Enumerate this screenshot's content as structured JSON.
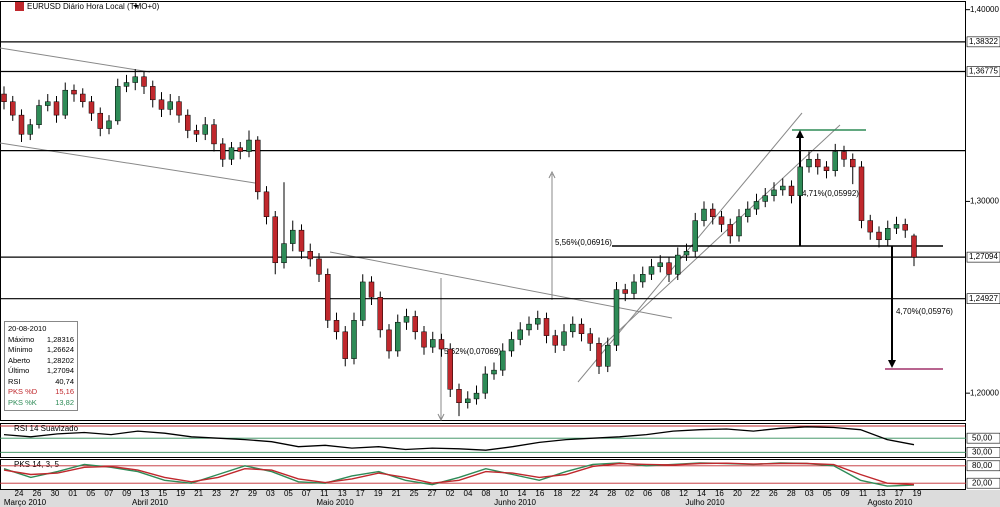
{
  "header": {
    "title": "EURUSD Diário Hora Local (TMO+0)"
  },
  "chart_data": {
    "type": "candlestick",
    "ylim": [
      1.186,
      1.404
    ],
    "yticks": [
      {
        "value": 1.4,
        "label": "1,40000"
      },
      {
        "value": 1.3,
        "label": "1,30000"
      },
      {
        "value": 1.2,
        "label": "1,20000"
      }
    ],
    "levels": [
      {
        "value": 1.38322,
        "label": "1,38322"
      },
      {
        "value": 1.36775,
        "label": "1,36775"
      },
      1.3265,
      {
        "value": 1.27094,
        "label": "1,27094"
      },
      {
        "value": 1.24927,
        "label": "1,24927"
      }
    ],
    "bull_color": "#2e8b57",
    "bear_color": "#c0282d",
    "candles": [
      [
        1.356,
        1.36,
        1.348,
        1.352
      ],
      [
        1.352,
        1.355,
        1.342,
        1.345
      ],
      [
        1.345,
        1.348,
        1.331,
        1.335
      ],
      [
        1.335,
        1.343,
        1.332,
        1.34
      ],
      [
        1.34,
        1.353,
        1.338,
        1.35
      ],
      [
        1.35,
        1.356,
        1.347,
        1.352
      ],
      [
        1.352,
        1.355,
        1.341,
        1.345
      ],
      [
        1.345,
        1.362,
        1.343,
        1.358
      ],
      [
        1.358,
        1.361,
        1.352,
        1.356
      ],
      [
        1.356,
        1.359,
        1.349,
        1.352
      ],
      [
        1.352,
        1.355,
        1.342,
        1.346
      ],
      [
        1.346,
        1.349,
        1.334,
        1.338
      ],
      [
        1.338,
        1.345,
        1.335,
        1.342
      ],
      [
        1.342,
        1.364,
        1.34,
        1.36
      ],
      [
        1.36,
        1.366,
        1.357,
        1.362
      ],
      [
        1.362,
        1.369,
        1.358,
        1.365
      ],
      [
        1.365,
        1.368,
        1.356,
        1.36
      ],
      [
        1.36,
        1.363,
        1.349,
        1.353
      ],
      [
        1.353,
        1.357,
        1.344,
        1.348
      ],
      [
        1.348,
        1.356,
        1.345,
        1.352
      ],
      [
        1.352,
        1.355,
        1.341,
        1.345
      ],
      [
        1.345,
        1.348,
        1.333,
        1.337
      ],
      [
        1.337,
        1.34,
        1.331,
        1.335
      ],
      [
        1.335,
        1.344,
        1.332,
        1.34
      ],
      [
        1.34,
        1.343,
        1.326,
        1.33
      ],
      [
        1.33,
        1.333,
        1.318,
        1.322
      ],
      [
        1.322,
        1.331,
        1.319,
        1.328
      ],
      [
        1.328,
        1.331,
        1.322,
        1.326
      ],
      [
        1.326,
        1.337,
        1.323,
        1.332
      ],
      [
        1.332,
        1.334,
        1.301,
        1.305
      ],
      [
        1.305,
        1.308,
        1.288,
        1.292
      ],
      [
        1.292,
        1.295,
        1.262,
        1.268
      ],
      [
        1.268,
        1.31,
        1.265,
        1.278
      ],
      [
        1.278,
        1.29,
        1.274,
        1.285
      ],
      [
        1.285,
        1.288,
        1.27,
        1.274
      ],
      [
        1.274,
        1.278,
        1.266,
        1.27
      ],
      [
        1.27,
        1.273,
        1.258,
        1.262
      ],
      [
        1.262,
        1.265,
        1.234,
        1.238
      ],
      [
        1.238,
        1.242,
        1.228,
        1.232
      ],
      [
        1.232,
        1.235,
        1.214,
        1.218
      ],
      [
        1.218,
        1.242,
        1.215,
        1.238
      ],
      [
        1.238,
        1.262,
        1.235,
        1.258
      ],
      [
        1.258,
        1.261,
        1.246,
        1.25
      ],
      [
        1.25,
        1.253,
        1.229,
        1.233
      ],
      [
        1.233,
        1.236,
        1.218,
        1.222
      ],
      [
        1.222,
        1.241,
        1.219,
        1.237
      ],
      [
        1.237,
        1.244,
        1.233,
        1.24
      ],
      [
        1.24,
        1.243,
        1.228,
        1.232
      ],
      [
        1.232,
        1.235,
        1.22,
        1.224
      ],
      [
        1.224,
        1.232,
        1.221,
        1.228
      ],
      [
        1.228,
        1.231,
        1.219,
        1.223
      ],
      [
        1.223,
        1.226,
        1.198,
        1.202
      ],
      [
        1.202,
        1.205,
        1.188,
        1.195
      ],
      [
        1.195,
        1.201,
        1.192,
        1.197
      ],
      [
        1.197,
        1.204,
        1.194,
        1.2
      ],
      [
        1.2,
        1.214,
        1.197,
        1.21
      ],
      [
        1.21,
        1.216,
        1.207,
        1.212
      ],
      [
        1.212,
        1.226,
        1.209,
        1.222
      ],
      [
        1.222,
        1.232,
        1.219,
        1.228
      ],
      [
        1.228,
        1.237,
        1.225,
        1.233
      ],
      [
        1.233,
        1.24,
        1.23,
        1.236
      ],
      [
        1.236,
        1.243,
        1.233,
        1.239
      ],
      [
        1.239,
        1.242,
        1.226,
        1.23
      ],
      [
        1.23,
        1.233,
        1.221,
        1.225
      ],
      [
        1.225,
        1.236,
        1.222,
        1.232
      ],
      [
        1.232,
        1.24,
        1.229,
        1.236
      ],
      [
        1.236,
        1.239,
        1.227,
        1.231
      ],
      [
        1.231,
        1.234,
        1.222,
        1.226
      ],
      [
        1.226,
        1.229,
        1.21,
        1.214
      ],
      [
        1.214,
        1.229,
        1.211,
        1.225
      ],
      [
        1.225,
        1.258,
        1.222,
        1.254
      ],
      [
        1.254,
        1.257,
        1.248,
        1.252
      ],
      [
        1.252,
        1.262,
        1.249,
        1.258
      ],
      [
        1.258,
        1.266,
        1.255,
        1.262
      ],
      [
        1.262,
        1.27,
        1.259,
        1.266
      ],
      [
        1.266,
        1.272,
        1.263,
        1.268
      ],
      [
        1.268,
        1.271,
        1.258,
        1.262
      ],
      [
        1.262,
        1.276,
        1.259,
        1.272
      ],
      [
        1.272,
        1.278,
        1.269,
        1.274
      ],
      [
        1.274,
        1.294,
        1.271,
        1.29
      ],
      [
        1.29,
        1.3,
        1.287,
        1.296
      ],
      [
        1.296,
        1.299,
        1.288,
        1.292
      ],
      [
        1.292,
        1.295,
        1.284,
        1.288
      ],
      [
        1.288,
        1.291,
        1.278,
        1.282
      ],
      [
        1.282,
        1.296,
        1.279,
        1.292
      ],
      [
        1.292,
        1.3,
        1.289,
        1.296
      ],
      [
        1.296,
        1.304,
        1.293,
        1.3
      ],
      [
        1.3,
        1.307,
        1.297,
        1.303
      ],
      [
        1.303,
        1.31,
        1.3,
        1.306
      ],
      [
        1.306,
        1.312,
        1.303,
        1.308
      ],
      [
        1.308,
        1.311,
        1.299,
        1.303
      ],
      [
        1.303,
        1.322,
        1.3,
        1.318
      ],
      [
        1.318,
        1.326,
        1.315,
        1.322
      ],
      [
        1.322,
        1.325,
        1.314,
        1.318
      ],
      [
        1.318,
        1.321,
        1.312,
        1.316
      ],
      [
        1.316,
        1.33,
        1.313,
        1.326
      ],
      [
        1.326,
        1.329,
        1.318,
        1.322
      ],
      [
        1.322,
        1.325,
        1.309,
        1.318
      ],
      [
        1.318,
        1.321,
        1.286,
        1.29
      ],
      [
        1.29,
        1.293,
        1.28,
        1.284
      ],
      [
        1.284,
        1.287,
        1.276,
        1.28
      ],
      [
        1.28,
        1.29,
        1.277,
        1.286
      ],
      [
        1.286,
        1.292,
        1.283,
        1.288
      ],
      [
        1.288,
        1.291,
        1.281,
        1.285
      ],
      [
        1.28202,
        1.28316,
        1.26624,
        1.27094
      ]
    ],
    "annotations": [
      "5,56%(0,06916)",
      "5,62%(0,07069)",
      "4,71%(0,05992)",
      "4,70%(0,05976)"
    ],
    "days": [
      "24",
      "26",
      "30",
      "01",
      "05",
      "07",
      "09",
      "13",
      "15",
      "19",
      "21",
      "23",
      "27",
      "29",
      "03",
      "05",
      "07",
      "11",
      "13",
      "17",
      "19",
      "21",
      "25",
      "27",
      "02",
      "04",
      "08",
      "10",
      "14",
      "16",
      "18",
      "22",
      "24",
      "28",
      "02",
      "06",
      "08",
      "12",
      "14",
      "16",
      "20",
      "22",
      "26",
      "28",
      "03",
      "05",
      "09",
      "11",
      "13",
      "17",
      "19"
    ],
    "months": [
      "Março 2010",
      "Abril 2010",
      "Maio 2010",
      "Junho 2010",
      "Julho 2010",
      "Agosto 2010"
    ],
    "rsi": {
      "title": "RSI 14 Suavizado",
      "color": "#000000",
      "ylim": [
        22,
        70
      ],
      "yticks": [
        {
          "value": 50,
          "label": "50,00"
        },
        {
          "value": 30,
          "label": "30,00"
        }
      ],
      "values": [
        55,
        52,
        56,
        58,
        55,
        60,
        57,
        52,
        50,
        48,
        45,
        38,
        40,
        36,
        38,
        34,
        36,
        35,
        33,
        38,
        44,
        48,
        50,
        52,
        55,
        60,
        62,
        63,
        60,
        64,
        66,
        65,
        62,
        48,
        40.74
      ]
    },
    "stoch": {
      "title": "PKS 14, 3, 5",
      "ylim": [
        0,
        100
      ],
      "yticks": [
        {
          "value": 80,
          "label": "80,00"
        },
        {
          "value": 20,
          "label": "20,00"
        }
      ],
      "series": [
        {
          "name": "PKS %K",
          "color": "#2e8b57",
          "values": [
            70,
            40,
            60,
            85,
            75,
            60,
            30,
            20,
            50,
            80,
            60,
            25,
            20,
            45,
            60,
            30,
            15,
            40,
            70,
            50,
            30,
            60,
            85,
            90,
            80,
            85,
            90,
            88,
            85,
            90,
            88,
            80,
            30,
            10,
            13.82
          ]
        },
        {
          "name": "PKS %D",
          "color": "#c0282d",
          "values": [
            65,
            50,
            55,
            75,
            78,
            65,
            40,
            25,
            40,
            70,
            65,
            35,
            22,
            35,
            55,
            40,
            20,
            30,
            60,
            55,
            40,
            50,
            78,
            88,
            85,
            83,
            88,
            89,
            86,
            88,
            88,
            84,
            50,
            20,
            15.16
          ]
        }
      ]
    }
  },
  "info": {
    "date": "20-08-2010",
    "rows": [
      [
        "Máximo",
        "1,28316"
      ],
      [
        "Mínimo",
        "1,26624"
      ],
      [
        "Aberto",
        "1,28202"
      ],
      [
        "Último",
        "1,27094"
      ],
      [
        "RSI",
        "40,74"
      ],
      [
        "PKS %D",
        "15,16"
      ],
      [
        "PKS %K",
        "13,82"
      ]
    ]
  }
}
